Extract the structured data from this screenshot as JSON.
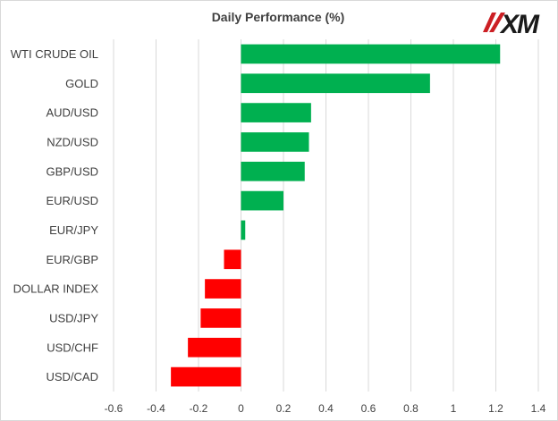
{
  "title": "Daily Performance  (%)",
  "logo": {
    "text": "XM",
    "colors": {
      "mark": "#cc1f24",
      "text": "#1a1a1a"
    }
  },
  "colors": {
    "positive": "#00b050",
    "negative": "#ff0000",
    "grid": "#d9d9d9",
    "text": "#404040"
  },
  "chart_data": {
    "type": "bar",
    "orientation": "horizontal",
    "title": "Daily Performance  (%)",
    "categories": [
      "WTI CRUDE OIL",
      "GOLD",
      "AUD/USD",
      "NZD/USD",
      "GBP/USD",
      "EUR/USD",
      "EUR/JPY",
      "EUR/GBP",
      "DOLLAR INDEX",
      "USD/JPY",
      "USD/CHF",
      "USD/CAD"
    ],
    "values": [
      1.22,
      0.89,
      0.33,
      0.32,
      0.3,
      0.2,
      0.02,
      -0.08,
      -0.17,
      -0.19,
      -0.25,
      -0.33
    ],
    "xlim": [
      -0.6,
      1.4
    ],
    "xticks": [
      -0.6,
      -0.4,
      -0.2,
      0,
      0.2,
      0.4,
      0.6,
      0.8,
      1,
      1.2,
      1.4
    ],
    "tick_labels": [
      "-0.6",
      "-0.4",
      "-0.2",
      "0",
      "0.2",
      "0.4",
      "0.6",
      "0.8",
      "1",
      "1.2",
      "1.4"
    ],
    "grid": true,
    "legend": "none",
    "xlabel": "",
    "ylabel": ""
  }
}
